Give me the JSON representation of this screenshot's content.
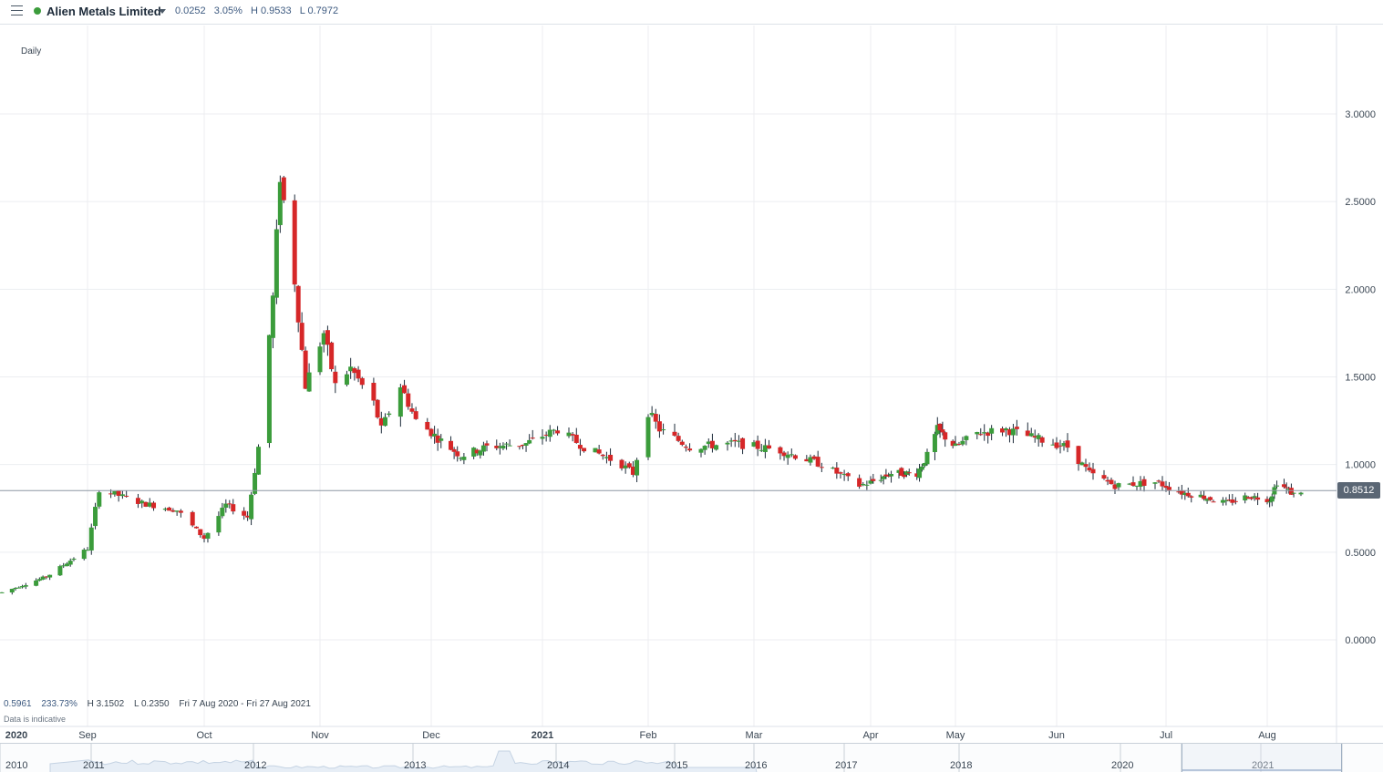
{
  "header": {
    "instrument": "Alien Metals Limited",
    "change": "0.0252",
    "change_pct": "3.05%",
    "high": "H 0.9533",
    "low": "L 0.7972",
    "status_color": "#3b9c3b"
  },
  "chart_data": {
    "type": "candlestick",
    "interval": "Daily",
    "y_ticks": [
      "3.0000",
      "2.5000",
      "2.0000",
      "1.5000",
      "1.0000",
      "0.5000",
      "0.0000"
    ],
    "ylim": [
      -0.25,
      3.35
    ],
    "last_price": "0.8512",
    "last_price_value": 0.8512,
    "x_labels": [
      {
        "label": "2020",
        "year": true
      },
      {
        "label": "Sep"
      },
      {
        "label": "Oct"
      },
      {
        "label": "Nov"
      },
      {
        "label": "Dec"
      },
      {
        "label": "2021",
        "year": true
      },
      {
        "label": "Feb"
      },
      {
        "label": "Mar"
      },
      {
        "label": "Apr"
      },
      {
        "label": "May"
      },
      {
        "label": "Jun"
      },
      {
        "label": "Jul"
      },
      {
        "label": "Aug"
      }
    ],
    "up_color": "#3b9c3b",
    "down_color": "#d62728",
    "anchors": [
      [
        "2020-08-07",
        0.27
      ],
      [
        "2020-08-20",
        0.36
      ],
      [
        "2020-09-01",
        0.52
      ],
      [
        "2020-09-04",
        0.86
      ],
      [
        "2020-09-15",
        0.78
      ],
      [
        "2020-09-24",
        0.74
      ],
      [
        "2020-10-01",
        0.58
      ],
      [
        "2020-10-07",
        0.77
      ],
      [
        "2020-10-13",
        0.7
      ],
      [
        "2020-10-16",
        1.1
      ],
      [
        "2020-10-20",
        1.95
      ],
      [
        "2020-10-22",
        2.65
      ],
      [
        "2020-10-26",
        2.05
      ],
      [
        "2020-10-29",
        1.45
      ],
      [
        "2020-11-03",
        1.75
      ],
      [
        "2020-11-06",
        1.45
      ],
      [
        "2020-11-10",
        1.55
      ],
      [
        "2020-11-16",
        1.35
      ],
      [
        "2020-11-18",
        1.2
      ],
      [
        "2020-11-23",
        1.45
      ],
      [
        "2020-11-27",
        1.25
      ],
      [
        "2020-12-03",
        1.15
      ],
      [
        "2020-12-10",
        1.05
      ],
      [
        "2020-12-18",
        1.1
      ],
      [
        "2020-12-30",
        1.12
      ],
      [
        "2021-01-08",
        1.2
      ],
      [
        "2021-01-15",
        1.1
      ],
      [
        "2021-01-25",
        1.0
      ],
      [
        "2021-01-28",
        0.95
      ],
      [
        "2021-02-01",
        1.3
      ],
      [
        "2021-02-04",
        1.2
      ],
      [
        "2021-02-12",
        1.1
      ],
      [
        "2021-02-24",
        1.12
      ],
      [
        "2021-03-08",
        1.08
      ],
      [
        "2021-03-19",
        1.0
      ],
      [
        "2021-03-29",
        0.88
      ],
      [
        "2021-04-09",
        0.95
      ],
      [
        "2021-04-19",
        0.95
      ],
      [
        "2021-04-23",
        1.05
      ],
      [
        "2021-04-27",
        1.2
      ],
      [
        "2021-05-04",
        1.1
      ],
      [
        "2021-05-10",
        1.18
      ],
      [
        "2021-05-18",
        1.2
      ],
      [
        "2021-05-26",
        1.15
      ],
      [
        "2021-06-04",
        1.1
      ],
      [
        "2021-06-10",
        0.95
      ],
      [
        "2021-06-17",
        0.88
      ],
      [
        "2021-06-28",
        0.9
      ],
      [
        "2021-07-06",
        0.84
      ],
      [
        "2021-07-12",
        0.82
      ],
      [
        "2021-07-20",
        0.78
      ],
      [
        "2021-07-27",
        0.82
      ],
      [
        "2021-08-03",
        0.8
      ],
      [
        "2021-08-06",
        0.9
      ],
      [
        "2021-08-13",
        0.83
      ],
      [
        "2021-08-16",
        0.85
      ]
    ]
  },
  "range_summary": {
    "change": "0.5961",
    "change_pct": "233.73%",
    "high": "H 3.1502",
    "low": "L 0.2350",
    "dates": "Fri 7 Aug 2020 - Fri 27 Aug 2021"
  },
  "disclaimer": "Data is indicative",
  "navigator": {
    "years": [
      "2010",
      "2011",
      "2012",
      "2013",
      "2014",
      "2015",
      "2016",
      "2017",
      "2018",
      "2020",
      "2021"
    ]
  }
}
